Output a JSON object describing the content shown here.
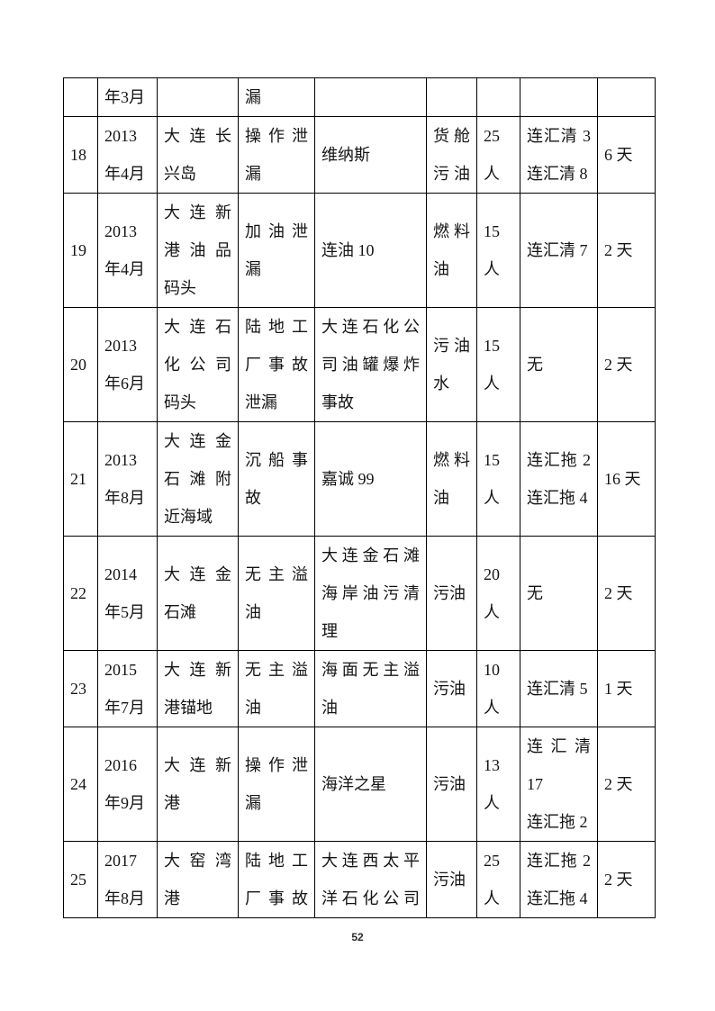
{
  "document": {
    "page_number": "52"
  },
  "table": {
    "rows": [
      {
        "no": [],
        "date": [
          "年3月"
        ],
        "location": [],
        "type": [
          "漏"
        ],
        "ship": [],
        "oil": [],
        "people": [],
        "vessels": [],
        "days": []
      },
      {
        "no": [
          "18"
        ],
        "date": [
          "2013",
          "年4月"
        ],
        "location": [
          "大连长",
          "兴岛"
        ],
        "type": [
          "操作泄",
          "漏"
        ],
        "ship": [
          "维纳斯"
        ],
        "oil": {
          "lines": [
            "货舱",
            "污油"
          ],
          "spread": true
        },
        "people": [
          "25",
          "人"
        ],
        "vessels": [
          "连汇清 3",
          "连汇清 8"
        ],
        "days": [
          "6 天"
        ]
      },
      {
        "no": [
          "19"
        ],
        "date": [
          "2013",
          "年4月"
        ],
        "location": [
          "大连新",
          "港油品",
          "码头"
        ],
        "type": [
          "加油泄",
          "漏"
        ],
        "ship": [
          "连油 10"
        ],
        "oil": [
          "燃料",
          "油"
        ],
        "people": [
          "15",
          "人"
        ],
        "vessels": [
          "连汇清 7"
        ],
        "days": [
          "2 天"
        ]
      },
      {
        "no": [
          "20"
        ],
        "date": [
          "2013",
          "年6月"
        ],
        "location": [
          "大连石",
          "化公司",
          "码头"
        ],
        "type": [
          "陆地工",
          "厂事故",
          "泄漏"
        ],
        "ship": [
          "大连石化公",
          "司油罐爆炸",
          "事故"
        ],
        "oil": [
          "污油",
          "水"
        ],
        "people": [
          "15",
          "人"
        ],
        "vessels": [
          "无"
        ],
        "days": [
          "2 天"
        ]
      },
      {
        "no": [
          "21"
        ],
        "date": [
          "2013",
          "年8月"
        ],
        "location": [
          "大连金",
          "石滩附",
          "近海域"
        ],
        "type": [
          "沉船事",
          "故"
        ],
        "ship": [
          "嘉诚 99"
        ],
        "oil": [
          "燃料",
          "油"
        ],
        "people": [
          "15",
          "人"
        ],
        "vessels": [
          "连汇拖 2",
          "连汇拖 4"
        ],
        "days": [
          "16 天"
        ]
      },
      {
        "no": [
          "22"
        ],
        "date": [
          "2014",
          "年5月"
        ],
        "location": [
          "大连金",
          "石滩"
        ],
        "type": [
          "无主溢",
          "油"
        ],
        "ship": [
          "大连金石滩",
          "海岸油污清",
          "理"
        ],
        "oil": [
          "污油"
        ],
        "people": [
          "20",
          "人"
        ],
        "vessels": [
          "无"
        ],
        "days": [
          "2 天"
        ]
      },
      {
        "no": [
          "23"
        ],
        "date": [
          "2015",
          "年7月"
        ],
        "location": [
          "大连新",
          "港锚地"
        ],
        "type": [
          "无主溢",
          "油"
        ],
        "ship": [
          "海面无主溢",
          "油"
        ],
        "oil": [
          "污油"
        ],
        "people": [
          "10",
          "人"
        ],
        "vessels": [
          "连汇清 5"
        ],
        "days": [
          "1 天"
        ]
      },
      {
        "no": [
          "24"
        ],
        "date": [
          "2016",
          "年9月"
        ],
        "location": [
          "大连新",
          "港"
        ],
        "type": [
          "操作泄",
          "漏"
        ],
        "ship": [
          "海洋之星"
        ],
        "oil": [
          "污油"
        ],
        "people": [
          "13",
          "人"
        ],
        "vessels": [
          "连汇清",
          "17",
          "连汇拖 2"
        ],
        "days": [
          "2 天"
        ]
      },
      {
        "no": [
          "25"
        ],
        "date": [
          "2017",
          "年8月"
        ],
        "location": [
          "大窑湾",
          "港"
        ],
        "type": {
          "lines": [
            "陆地工",
            "厂事故"
          ],
          "spread": true
        },
        "ship": {
          "lines": [
            "大连西太平",
            "洋石化公司"
          ],
          "spread": true
        },
        "oil": [
          "污油"
        ],
        "people": [
          "25",
          "人"
        ],
        "vessels": [
          "连汇拖 2",
          "连汇拖 4"
        ],
        "days": [
          "2 天"
        ]
      }
    ]
  }
}
